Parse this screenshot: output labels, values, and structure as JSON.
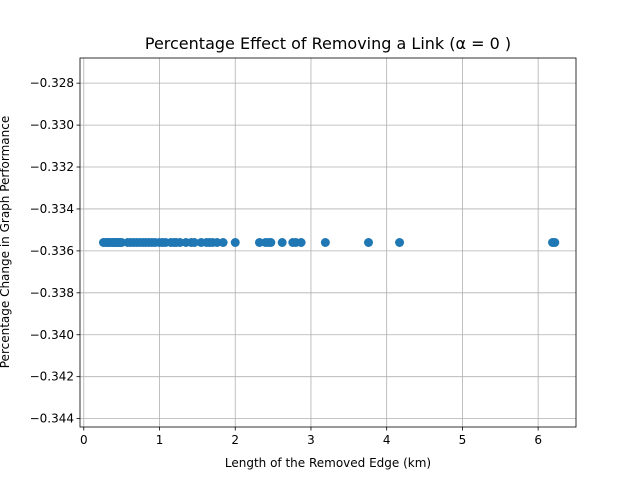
{
  "chart_data": {
    "type": "scatter",
    "title": "Percentage Effect of Removing a Link (α = 0 )",
    "xlabel": "Length of the Removed Edge (km)",
    "ylabel": "Percentage Change in Graph Performance",
    "xlim": [
      -0.05,
      6.5
    ],
    "ylim": [
      -0.3444,
      -0.3268
    ],
    "x_ticks": [
      0,
      1,
      2,
      3,
      4,
      5,
      6
    ],
    "y_ticks": [
      -0.344,
      -0.342,
      -0.34,
      -0.338,
      -0.336,
      -0.334,
      -0.332,
      -0.33,
      -0.328
    ],
    "grid": true,
    "marker_color": "#1f77b4",
    "series": [
      {
        "x": [
          0.26,
          0.29,
          0.31,
          0.33,
          0.35,
          0.38,
          0.4,
          0.42,
          0.44,
          0.46,
          0.48,
          0.5,
          0.58,
          0.62,
          0.66,
          0.7,
          0.74,
          0.78,
          0.82,
          0.86,
          0.9,
          0.94,
          1.0,
          1.04,
          1.08,
          1.15,
          1.19,
          1.22,
          1.27,
          1.35,
          1.42,
          1.46,
          1.55,
          1.62,
          1.66,
          1.7,
          1.76,
          1.84,
          2.0,
          2.32,
          2.4,
          2.44,
          2.47,
          2.62,
          2.76,
          2.8,
          2.87,
          3.19,
          3.76,
          4.17,
          6.19,
          6.22
        ],
        "y": [
          -0.3356,
          -0.3356,
          -0.3356,
          -0.3356,
          -0.3356,
          -0.3356,
          -0.3356,
          -0.3356,
          -0.3356,
          -0.3356,
          -0.3356,
          -0.3356,
          -0.3356,
          -0.3356,
          -0.3356,
          -0.3356,
          -0.3356,
          -0.3356,
          -0.3356,
          -0.3356,
          -0.3356,
          -0.3356,
          -0.3356,
          -0.3356,
          -0.3356,
          -0.3356,
          -0.3356,
          -0.3356,
          -0.3356,
          -0.3356,
          -0.3356,
          -0.3356,
          -0.3356,
          -0.3356,
          -0.3356,
          -0.3356,
          -0.3356,
          -0.3356,
          -0.3356,
          -0.3356,
          -0.3356,
          -0.3356,
          -0.3356,
          -0.3356,
          -0.3356,
          -0.3356,
          -0.3356,
          -0.3356,
          -0.3356,
          -0.3356,
          -0.3356,
          -0.3356
        ]
      }
    ]
  }
}
